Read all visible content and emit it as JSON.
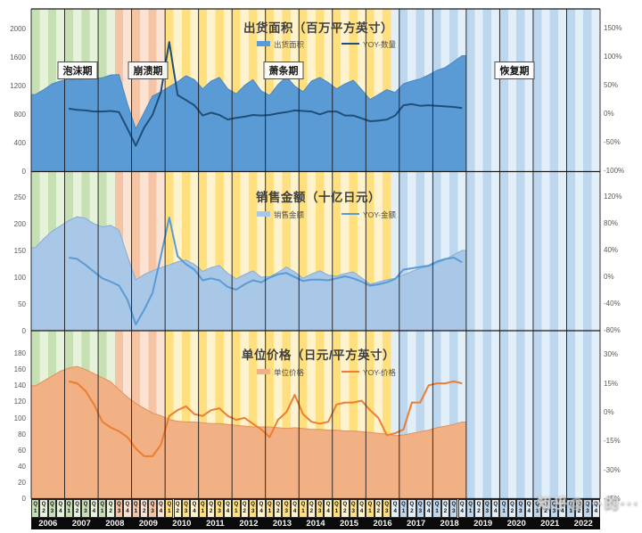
{
  "watermark": {
    "text": "知乎@···的···"
  },
  "period_labels_note": "periods shown as shaded bands",
  "periods": [
    {
      "label": "泡沫期",
      "from": "2006Q1",
      "to": "2008Q2",
      "start_index": 0,
      "end_index": 9,
      "color_dark": "#c6e0b4",
      "color_light": "#e6f2da"
    },
    {
      "label": "崩溃期",
      "from": "2008Q3",
      "to": "2009Q4",
      "start_index": 10,
      "end_index": 15,
      "color_dark": "#f5c4a4",
      "color_light": "#fbe3d4"
    },
    {
      "label": "萧条期",
      "from": "2010Q1",
      "to": "2016Q3",
      "start_index": 16,
      "end_index": 42,
      "color_dark": "#ffdf7e",
      "color_light": "#fff3cd"
    },
    {
      "label": "恢复期",
      "from": "2016Q4",
      "to": "2022Q4",
      "start_index": 43,
      "end_index": 67,
      "color_dark": "#bdd7ee",
      "color_light": "#e2eef8"
    }
  ],
  "x_axis": {
    "quarter_letter": "Q",
    "quarter_digits": [
      "1",
      "2",
      "3",
      "4"
    ],
    "years": [
      "2006",
      "2007",
      "2008",
      "2009",
      "2010",
      "2011",
      "2012",
      "2013",
      "2014",
      "2015",
      "2016",
      "2017",
      "2018",
      "2019",
      "2020",
      "2021",
      "2022"
    ]
  },
  "panels": [
    {
      "title": "出货面积（百万平方英寸）",
      "legend": [
        {
          "label": "出货面积",
          "type": "area",
          "color": "#5b9bd5",
          "stroke": "#4a86c4"
        },
        {
          "label": "YOY-数量",
          "type": "line",
          "color": "#1f4e79"
        }
      ]
    },
    {
      "title": "销售金额（十亿日元）",
      "legend": [
        {
          "label": "销售金额",
          "type": "area",
          "color": "#a9c7e6",
          "stroke": "#86add6"
        },
        {
          "label": "YOY-金额",
          "type": "line",
          "color": "#5b9bd5"
        }
      ]
    },
    {
      "title": "单位价格（日元/平方英寸）",
      "legend": [
        {
          "label": "单位价格",
          "type": "area",
          "color": "#f1b184",
          "stroke": "#e09259"
        },
        {
          "label": "YOY-价格",
          "type": "line",
          "color": "#ed7d31"
        }
      ]
    }
  ],
  "chart_data": [
    {
      "type": "area",
      "title": "出货面积（百万平方英寸）",
      "x": [
        "2006Q1",
        "2006Q2",
        "2006Q3",
        "2006Q4",
        "2007Q1",
        "2007Q2",
        "2007Q3",
        "2007Q4",
        "2008Q1",
        "2008Q2",
        "2008Q3",
        "2008Q4",
        "2009Q1",
        "2009Q2",
        "2009Q3",
        "2009Q4",
        "2010Q1",
        "2010Q2",
        "2010Q3",
        "2010Q4",
        "2011Q1",
        "2011Q2",
        "2011Q3",
        "2011Q4",
        "2012Q1",
        "2012Q2",
        "2012Q3",
        "2012Q4",
        "2013Q1",
        "2013Q2",
        "2013Q3",
        "2013Q4",
        "2014Q1",
        "2014Q2",
        "2014Q3",
        "2014Q4",
        "2015Q1",
        "2015Q2",
        "2015Q3",
        "2015Q4",
        "2016Q1",
        "2016Q2",
        "2016Q3",
        "2016Q4",
        "2017Q1",
        "2017Q2",
        "2017Q3",
        "2017Q4",
        "2018Q1",
        "2018Q2",
        "2018Q3",
        "2018Q4"
      ],
      "x_full_range": [
        "2006Q1",
        "2022Q4"
      ],
      "series": [
        {
          "name": "出货面积",
          "type": "area",
          "axis": "left",
          "values": [
            1080,
            1150,
            1230,
            1270,
            1295,
            1285,
            1305,
            1300,
            1315,
            1355,
            1360,
            950,
            600,
            830,
            1060,
            1120,
            1190,
            1260,
            1345,
            1290,
            1160,
            1270,
            1320,
            1160,
            1090,
            1210,
            1290,
            1130,
            1070,
            1220,
            1330,
            1200,
            1120,
            1270,
            1320,
            1250,
            1160,
            1230,
            1280,
            1150,
            1010,
            1080,
            1150,
            1110,
            1230,
            1270,
            1300,
            1355,
            1420,
            1460,
            1540,
            1625
          ]
        },
        {
          "name": "YOY-数量",
          "type": "line",
          "axis": "right",
          "unit": "%",
          "values": [
            null,
            null,
            null,
            null,
            9,
            7,
            6,
            4,
            4,
            5,
            3,
            -26,
            -56,
            -24,
            -2,
            38,
            126,
            33,
            24,
            15,
            -3,
            2,
            -2,
            -10,
            -7,
            -5,
            -2,
            -3,
            -2,
            1,
            3,
            6,
            5,
            4,
            -1,
            4,
            4,
            -3,
            -3,
            -8,
            -13,
            -12,
            -10,
            -3,
            15,
            17,
            14,
            15,
            14,
            13,
            12,
            10
          ]
        }
      ],
      "left_axis": {
        "ticks": [
          0,
          400,
          800,
          1200,
          1600,
          2000
        ]
      },
      "right_axis": {
        "unit": "%",
        "ticks": [
          150,
          100,
          50,
          0,
          -50,
          -100
        ]
      },
      "legend_position": "top-center",
      "grid": "yearly-vertical"
    },
    {
      "type": "area",
      "title": "销售金额（十亿日元）",
      "x": "same as panel 1",
      "series": [
        {
          "name": "销售金额",
          "type": "area",
          "axis": "left",
          "values": [
            155,
            172,
            186,
            196,
            206,
            213,
            210,
            200,
            194,
            197,
            188,
            140,
            95,
            105,
            112,
            118,
            123,
            129,
            132,
            124,
            111,
            118,
            122,
            107,
            97,
            105,
            112,
            100,
            101,
            109,
            119,
            110,
            98,
            106,
            112,
            104,
            102,
            107,
            110,
            99,
            87,
            91,
            95,
            98,
            104,
            111,
            117,
            120,
            126,
            133,
            142,
            150
          ]
        },
        {
          "name": "YOY-金额",
          "type": "line",
          "axis": "right",
          "unit": "%",
          "values": [
            null,
            null,
            null,
            null,
            28,
            26,
            17,
            7,
            -3,
            -8,
            -14,
            -35,
            -72,
            -50,
            -25,
            30,
            88,
            30,
            18,
            10,
            -6,
            -3,
            -6,
            -16,
            -20,
            -12,
            -6,
            -9,
            -2,
            3,
            5,
            -1,
            -7,
            -5,
            -5,
            -6,
            -3,
            0,
            -3,
            -8,
            -14,
            -12,
            -9,
            -4,
            10,
            12,
            14,
            16,
            22,
            26,
            28,
            21
          ]
        }
      ],
      "left_axis": {
        "ticks": [
          0,
          50,
          100,
          150,
          200,
          250
        ]
      },
      "right_axis": {
        "unit": "%",
        "ticks": [
          120,
          80,
          40,
          0,
          -40,
          -80
        ]
      },
      "legend_position": "top-center",
      "grid": "yearly-vertical"
    },
    {
      "type": "area",
      "title": "单位价格（日元/平方英寸）",
      "x": "same as panel 1",
      "series": [
        {
          "name": "单位价格",
          "type": "area",
          "axis": "left",
          "values": [
            140,
            146,
            152,
            158,
            162,
            164,
            160,
            155,
            150,
            145,
            135,
            126,
            118,
            112,
            106,
            103,
            98,
            96,
            95,
            95,
            94,
            93,
            93,
            92,
            91,
            90,
            89,
            89,
            89,
            88,
            87,
            88,
            87,
            86,
            86,
            85,
            85,
            84,
            84,
            83,
            82,
            81,
            80,
            78,
            79,
            81,
            83,
            85,
            88,
            90,
            92,
            95
          ]
        },
        {
          "name": "YOY-价格",
          "type": "line",
          "axis": "right",
          "unit": "%",
          "values": [
            null,
            null,
            null,
            null,
            16,
            15,
            11,
            4,
            -5,
            -8,
            -10,
            -13,
            -19,
            -23,
            -23,
            -17,
            -2,
            1,
            3,
            -1,
            -2,
            1,
            2,
            -2,
            -4,
            -3,
            -6,
            -9,
            -13,
            -4,
            0,
            9,
            -1,
            -5,
            -6,
            -5,
            4,
            5,
            5,
            6,
            1,
            -3,
            -12,
            -11,
            -9,
            5,
            5,
            14,
            15,
            15,
            16,
            15
          ]
        }
      ],
      "left_axis": {
        "ticks": [
          0,
          20,
          40,
          60,
          80,
          100,
          120,
          140,
          160,
          180
        ]
      },
      "right_axis": {
        "unit": "%",
        "ticks": [
          30,
          15,
          0,
          -15,
          -30,
          -45
        ]
      },
      "legend_position": "top-center",
      "grid": "yearly-vertical"
    }
  ]
}
